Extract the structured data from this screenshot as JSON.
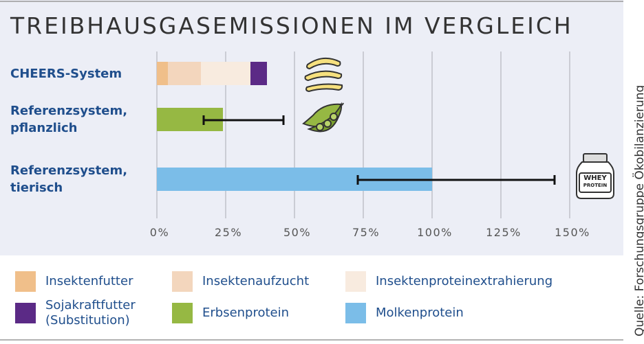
{
  "chart_data": {
    "type": "bar",
    "orientation": "horizontal",
    "stacked": true,
    "title": "TREIBHAUSGASEMISSIONEN IM VERGLEICH",
    "categories": [
      "CHEERS-System",
      "Referenzsystem,\npflanzlich",
      "Referenzsystem,\ntierisch"
    ],
    "series": [
      {
        "name": "Insektenfutter",
        "color": "#f0bf8a",
        "values": [
          4,
          null,
          null
        ]
      },
      {
        "name": "Insektenaufzucht",
        "color": "#f3d6bd",
        "values": [
          12,
          null,
          null
        ]
      },
      {
        "name": "Insektenproteinextrahierung",
        "color": "#f8ebdf",
        "values": [
          18,
          null,
          null
        ]
      },
      {
        "name": "Sojakraftfutter\n(Substitution)",
        "color": "#5b2a86",
        "values": [
          6,
          null,
          null
        ]
      },
      {
        "name": "Erbsenprotein",
        "color": "#96b843",
        "values": [
          null,
          24,
          null
        ],
        "range": [
          null,
          [
            17,
            46
          ],
          null
        ]
      },
      {
        "name": "Molkenprotein",
        "color": "#7bbde8",
        "values": [
          null,
          null,
          100
        ],
        "range": [
          null,
          null,
          [
            73,
            144.5
          ]
        ]
      }
    ],
    "xlim": [
      0,
      150
    ],
    "xticks": [
      {
        "value": 0,
        "label": "0%"
      },
      {
        "value": 25,
        "label": "25%"
      },
      {
        "value": 50,
        "label": "50%"
      },
      {
        "value": 75,
        "label": "75%"
      },
      {
        "value": 100,
        "label": "100%"
      },
      {
        "value": 125,
        "label": "125%"
      },
      {
        "value": 150,
        "label": "150%"
      }
    ],
    "grid": true,
    "whey_label": [
      "WHEY",
      "PROTEIN"
    ],
    "source": "Quelle: Forschungsgruppe Ökobilanzierung"
  }
}
